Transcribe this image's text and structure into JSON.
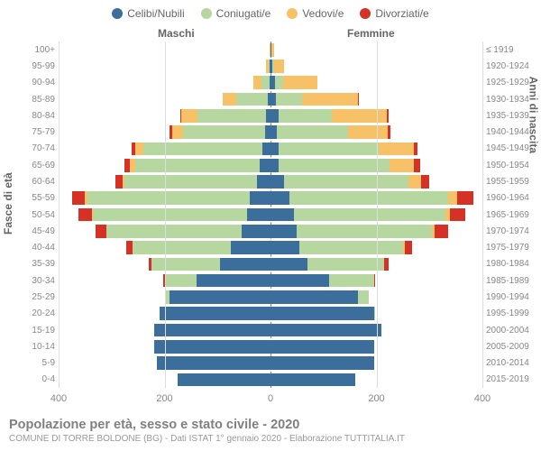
{
  "type": "population-pyramid-stacked",
  "legend": [
    {
      "label": "Celibi/Nubili",
      "color": "#3b6e9b"
    },
    {
      "label": "Coniugati/e",
      "color": "#b6d7a0"
    },
    {
      "label": "Vedovi/e",
      "color": "#f7c168"
    },
    {
      "label": "Divorziati/e",
      "color": "#d53225"
    }
  ],
  "side_labels": {
    "male": "Maschi",
    "female": "Femmine"
  },
  "yaxis_titles": {
    "left": "Fasce di età",
    "right": "Anni di nascita"
  },
  "xaxis": {
    "max": 400,
    "ticks": [
      400,
      200,
      0,
      200,
      400
    ]
  },
  "title": "Popolazione per età, sesso e stato civile - 2020",
  "subtitle": "COMUNE DI TORRE BOLDONE (BG) - Dati ISTAT 1° gennaio 2020 - Elaborazione TUTTITALIA.IT",
  "background_color": "#ffffff",
  "grid_color": "#dddddd",
  "centerline_color": "#888888",
  "label_color": "#888888",
  "rows": [
    {
      "age": "0-4",
      "year": "2015-2019",
      "m": [
        175,
        0,
        0,
        0
      ],
      "f": [
        160,
        0,
        0,
        0
      ]
    },
    {
      "age": "5-9",
      "year": "2010-2014",
      "m": [
        215,
        0,
        0,
        0
      ],
      "f": [
        195,
        0,
        0,
        0
      ]
    },
    {
      "age": "10-14",
      "year": "2005-2009",
      "m": [
        220,
        0,
        0,
        0
      ],
      "f": [
        195,
        0,
        0,
        0
      ]
    },
    {
      "age": "15-19",
      "year": "2000-2004",
      "m": [
        220,
        0,
        0,
        0
      ],
      "f": [
        210,
        0,
        0,
        0
      ]
    },
    {
      "age": "20-24",
      "year": "1995-1999",
      "m": [
        210,
        0,
        0,
        0
      ],
      "f": [
        195,
        3,
        0,
        0
      ]
    },
    {
      "age": "25-29",
      "year": "1990-1994",
      "m": [
        190,
        10,
        0,
        0
      ],
      "f": [
        165,
        20,
        0,
        0
      ]
    },
    {
      "age": "30-34",
      "year": "1985-1989",
      "m": [
        140,
        60,
        0,
        3
      ],
      "f": [
        110,
        85,
        0,
        3
      ]
    },
    {
      "age": "35-39",
      "year": "1980-1984",
      "m": [
        95,
        130,
        0,
        5
      ],
      "f": [
        70,
        145,
        0,
        8
      ]
    },
    {
      "age": "40-44",
      "year": "1975-1979",
      "m": [
        75,
        185,
        0,
        12
      ],
      "f": [
        55,
        195,
        3,
        15
      ]
    },
    {
      "age": "45-49",
      "year": "1970-1974",
      "m": [
        55,
        255,
        0,
        20
      ],
      "f": [
        50,
        255,
        5,
        25
      ]
    },
    {
      "age": "50-54",
      "year": "1965-1969",
      "m": [
        45,
        290,
        2,
        25
      ],
      "f": [
        45,
        285,
        8,
        30
      ]
    },
    {
      "age": "55-59",
      "year": "1960-1964",
      "m": [
        40,
        305,
        5,
        25
      ],
      "f": [
        35,
        300,
        18,
        30
      ]
    },
    {
      "age": "60-64",
      "year": "1955-1959",
      "m": [
        25,
        250,
        5,
        12
      ],
      "f": [
        25,
        235,
        25,
        15
      ]
    },
    {
      "age": "65-69",
      "year": "1950-1954",
      "m": [
        20,
        235,
        10,
        10
      ],
      "f": [
        15,
        210,
        45,
        12
      ]
    },
    {
      "age": "70-74",
      "year": "1945-1949",
      "m": [
        15,
        225,
        15,
        8
      ],
      "f": [
        15,
        190,
        65,
        8
      ]
    },
    {
      "age": "75-79",
      "year": "1940-1944",
      "m": [
        10,
        155,
        20,
        5
      ],
      "f": [
        12,
        135,
        75,
        5
      ]
    },
    {
      "age": "80-84",
      "year": "1935-1939",
      "m": [
        8,
        130,
        30,
        2
      ],
      "f": [
        15,
        100,
        105,
        3
      ]
    },
    {
      "age": "85-89",
      "year": "1930-1934",
      "m": [
        5,
        60,
        25,
        0
      ],
      "f": [
        10,
        50,
        105,
        2
      ]
    },
    {
      "age": "90-94",
      "year": "1925-1929",
      "m": [
        2,
        15,
        15,
        0
      ],
      "f": [
        8,
        15,
        65,
        0
      ]
    },
    {
      "age": "95-99",
      "year": "1920-1924",
      "m": [
        1,
        3,
        4,
        0
      ],
      "f": [
        3,
        3,
        20,
        0
      ]
    },
    {
      "age": "100+",
      "year": "≤ 1919",
      "m": [
        0,
        0,
        2,
        0
      ],
      "f": [
        2,
        0,
        5,
        0
      ]
    }
  ]
}
